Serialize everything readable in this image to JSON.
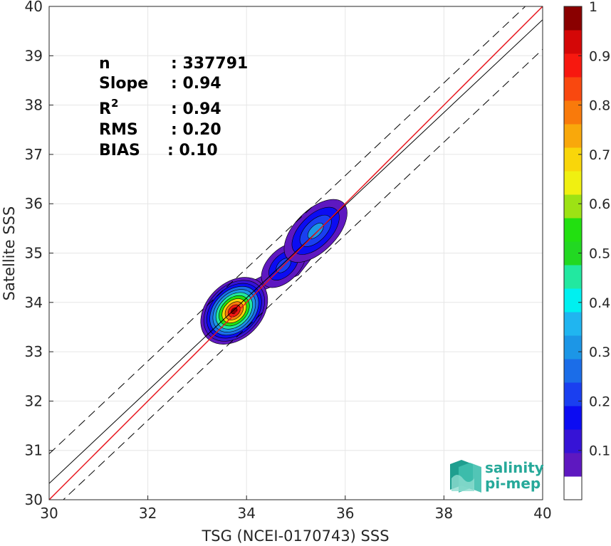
{
  "chart_data": {
    "type": "contour-scatter",
    "xlabel": "TSG (NCEI-0170743) SSS",
    "ylabel": "Satellite SSS",
    "xlim": [
      30,
      40
    ],
    "ylim": [
      30,
      40
    ],
    "xticks": [
      "30",
      "32",
      "34",
      "36",
      "38",
      "40"
    ],
    "yticks": [
      "30",
      "31",
      "32",
      "33",
      "34",
      "35",
      "36",
      "37",
      "38",
      "39",
      "40"
    ],
    "grid": true,
    "stats": [
      {
        "label": "n",
        "value": ": 337791"
      },
      {
        "label": "Slope",
        "value": ": 0.94"
      },
      {
        "label": "R",
        "sup": "2",
        "value": ": 0.94"
      },
      {
        "label": "RMS",
        "value": ": 0.20"
      },
      {
        "label": "BIAS",
        "value": ": 0.10"
      }
    ],
    "lines": {
      "identity": {
        "color": "#e8131b",
        "x": [
          30,
          40
        ],
        "y": [
          30,
          40
        ]
      },
      "regression": {
        "color": "#000000",
        "slope": 0.94,
        "intercept": 2.13
      },
      "envelope": {
        "color": "#000000",
        "style": "dashed",
        "offset": 0.6
      }
    },
    "density_clusters": [
      {
        "cx": 33.75,
        "cy": 33.83,
        "peak": 1.0
      },
      {
        "cx": 35.4,
        "cy": 35.45,
        "peak": 0.3
      },
      {
        "cx": 34.75,
        "cy": 34.75,
        "peak": 0.2
      }
    ],
    "colorbar": {
      "range": [
        0,
        1
      ],
      "ticks": [
        "0.1",
        "0.2",
        "0.3",
        "0.4",
        "0.5",
        "0.6",
        "0.7",
        "0.8",
        "0.9",
        "1"
      ],
      "colors": [
        "#ffffff",
        "#5e18c0",
        "#3613d6",
        "#0c0cf2",
        "#1a3ff0",
        "#1b6de8",
        "#1c96e6",
        "#20b5f0",
        "#00f0f0",
        "#22e8a0",
        "#22d822",
        "#22e010",
        "#9de214",
        "#f0f011",
        "#f9d60a",
        "#f9a80b",
        "#f97a0b",
        "#f9480f",
        "#f7180f",
        "#d40707",
        "#8a0000"
      ]
    }
  },
  "logo": {
    "line1": "salinity",
    "line2": "pi-mep"
  }
}
